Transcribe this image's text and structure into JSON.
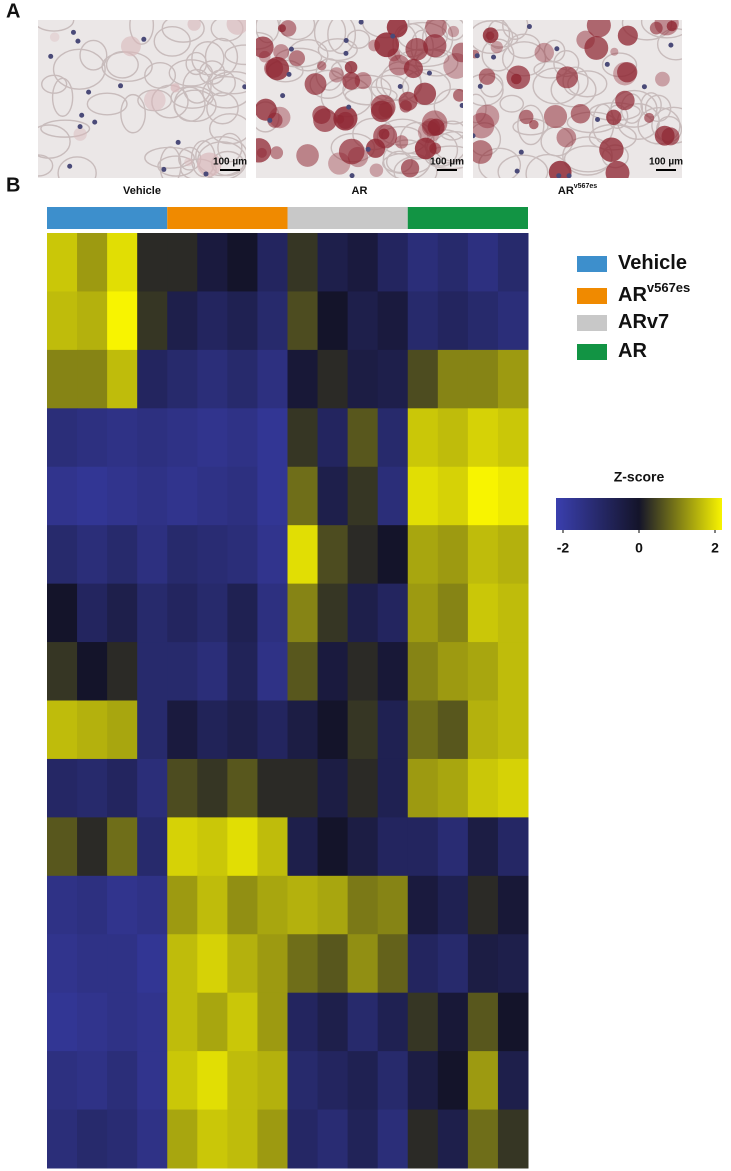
{
  "figure": {
    "panel_a": {
      "label": "A",
      "images": [
        {
          "label": "Vehicle",
          "scale_bar": "100 µm"
        },
        {
          "label": "AR",
          "scale_bar": "100 µm"
        },
        {
          "label": "AR",
          "label_sup": "v567es",
          "scale_bar": "100 µm"
        }
      ]
    },
    "panel_b": {
      "label": "B"
    }
  },
  "chart_data": {
    "type": "heatmap",
    "groups": [
      {
        "name": "Vehicle",
        "color": "#3d8fcc"
      },
      {
        "name": "AR",
        "sup": "v567es",
        "color": "#f08a00"
      },
      {
        "name": "ARv7",
        "color": "#c8c8c8"
      },
      {
        "name": "AR",
        "color": "#129444"
      }
    ],
    "values": [
      [
        1.6,
        1.2,
        1.8,
        0.2,
        0.2,
        -0.3,
        0,
        -0.8,
        0.3,
        -0.5,
        -0.3,
        -0.8,
        -1.2,
        -1,
        -1.3,
        -1
      ],
      [
        1.5,
        1.4,
        2,
        0.3,
        -0.5,
        -0.8,
        -0.6,
        -1,
        0.5,
        0,
        -0.5,
        -0.3,
        -1,
        -0.8,
        -1,
        -1.2
      ],
      [
        1,
        1,
        1.5,
        -0.8,
        -1,
        -1.2,
        -1,
        -1.3,
        -0.2,
        0.2,
        -0.4,
        -0.5,
        0.5,
        1,
        1,
        1.2
      ],
      [
        -1.2,
        -1.3,
        -1.4,
        -1.3,
        -1.4,
        -1.5,
        -1.4,
        -1.6,
        0.3,
        -0.8,
        0.6,
        -1,
        1.6,
        1.5,
        1.7,
        1.6
      ],
      [
        -1.5,
        -1.6,
        -1.5,
        -1.4,
        -1.5,
        -1.4,
        -1.3,
        -1.6,
        0.8,
        -0.5,
        0.3,
        -1.2,
        1.8,
        1.7,
        2,
        1.9
      ],
      [
        -1,
        -1.2,
        -1,
        -1.3,
        -1,
        -1.1,
        -1.2,
        -1.5,
        1.8,
        0.5,
        0.2,
        0,
        1.3,
        1.2,
        1.5,
        1.4
      ],
      [
        0,
        -0.8,
        -0.5,
        -1,
        -0.8,
        -1,
        -0.6,
        -1.3,
        1,
        0.3,
        -0.5,
        -0.8,
        1.2,
        1,
        1.6,
        1.5
      ],
      [
        0.3,
        0,
        0.2,
        -1,
        -1,
        -1.2,
        -0.7,
        -1.4,
        0.6,
        -0.3,
        0.2,
        -0.2,
        1,
        1.2,
        1.3,
        1.5
      ],
      [
        1.5,
        1.4,
        1.3,
        -1,
        -0.3,
        -0.7,
        -0.5,
        -0.8,
        -0.4,
        0,
        0.3,
        -0.6,
        0.8,
        0.6,
        1.4,
        1.5
      ],
      [
        -0.9,
        -1,
        -0.8,
        -1.2,
        0.5,
        0.3,
        0.6,
        0.2,
        0.2,
        -0.4,
        0.2,
        -0.6,
        1.2,
        1.3,
        1.6,
        1.7
      ],
      [
        0.6,
        0.2,
        0.8,
        -1,
        1.7,
        1.6,
        1.8,
        1.5,
        -0.5,
        0,
        -0.4,
        -0.8,
        -0.8,
        -1.1,
        -0.4,
        -0.9
      ],
      [
        -1.4,
        -1.3,
        -1.5,
        -1.4,
        1.2,
        1.5,
        1.1,
        1.3,
        1.4,
        1.3,
        0.9,
        1,
        -0.3,
        -0.6,
        0.2,
        -0.2
      ],
      [
        -1.5,
        -1.4,
        -1.4,
        -1.6,
        1.5,
        1.7,
        1.4,
        1.2,
        0.8,
        0.6,
        1.1,
        0.7,
        -0.8,
        -1,
        -0.4,
        -0.5
      ],
      [
        -1.6,
        -1.5,
        -1.4,
        -1.5,
        1.5,
        1.3,
        1.6,
        1.2,
        -0.8,
        -0.5,
        -1,
        -0.6,
        0.3,
        -0.2,
        0.6,
        0
      ],
      [
        -1.3,
        -1.4,
        -1.2,
        -1.5,
        1.6,
        1.8,
        1.5,
        1.4,
        -1,
        -0.8,
        -0.6,
        -1,
        -0.4,
        0,
        1.2,
        -0.5
      ],
      [
        -1.2,
        -1,
        -1.1,
        -1.4,
        1.3,
        1.6,
        1.5,
        1.2,
        -0.9,
        -1.1,
        -0.7,
        -1.2,
        0.2,
        -0.5,
        0.8,
        0.3
      ]
    ],
    "colorbar": {
      "title": "Z-score",
      "lim": [
        -2,
        2
      ],
      "ticks": [
        -2,
        0,
        2
      ],
      "colors": [
        "#3a3fae",
        "#14142a",
        "#f8f400"
      ]
    }
  }
}
